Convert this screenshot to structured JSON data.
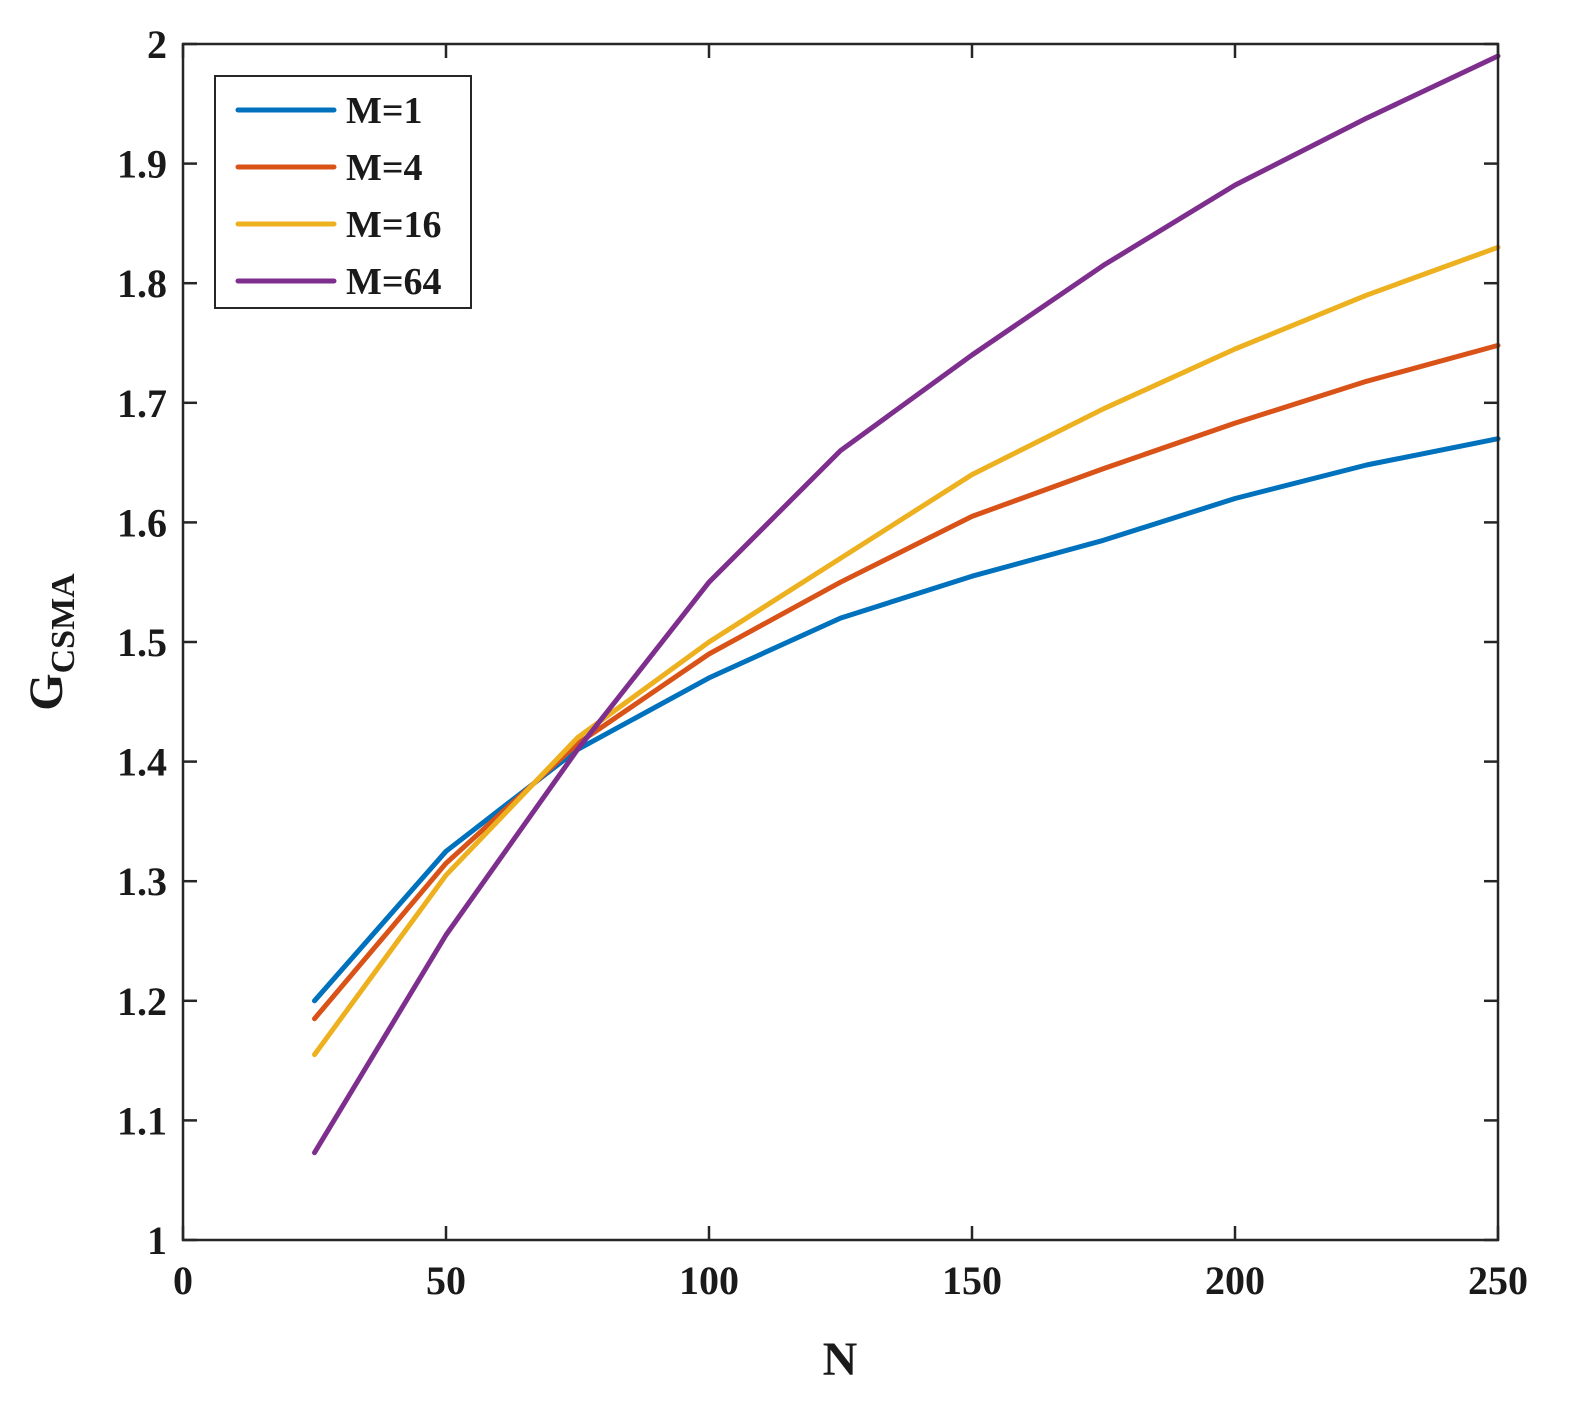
{
  "chart_data": {
    "type": "line",
    "xlabel": "N",
    "ylabel_main": "G",
    "ylabel_sub": "CSMA",
    "xlim": [
      0,
      250
    ],
    "ylim": [
      1,
      2
    ],
    "xticks": [
      0,
      50,
      100,
      150,
      200,
      250
    ],
    "yticks": [
      1,
      1.1,
      1.2,
      1.3,
      1.4,
      1.5,
      1.6,
      1.7,
      1.8,
      1.9,
      2
    ],
    "ytick_labels": [
      "1",
      "1.1",
      "1.2",
      "1.3",
      "1.4",
      "1.5",
      "1.6",
      "1.7",
      "1.8",
      "1.9",
      "2"
    ],
    "grid": false,
    "legend_position": "top-left",
    "x": [
      25,
      50,
      75,
      100,
      125,
      150,
      175,
      200,
      225,
      250
    ],
    "series": [
      {
        "name": "M=1",
        "color": "#0072bd",
        "values": [
          1.2,
          1.325,
          1.41,
          1.47,
          1.52,
          1.555,
          1.585,
          1.62,
          1.648,
          1.67
        ]
      },
      {
        "name": "M=4",
        "color": "#d95319",
        "values": [
          1.185,
          1.315,
          1.415,
          1.49,
          1.55,
          1.605,
          1.645,
          1.683,
          1.718,
          1.748
        ]
      },
      {
        "name": "M=16",
        "color": "#edb120",
        "values": [
          1.155,
          1.305,
          1.42,
          1.5,
          1.57,
          1.64,
          1.695,
          1.745,
          1.79,
          1.83
        ]
      },
      {
        "name": "M=64",
        "color": "#7e2f8e",
        "values": [
          1.073,
          1.255,
          1.41,
          1.55,
          1.66,
          1.74,
          1.815,
          1.882,
          1.938,
          1.99
        ]
      }
    ]
  }
}
